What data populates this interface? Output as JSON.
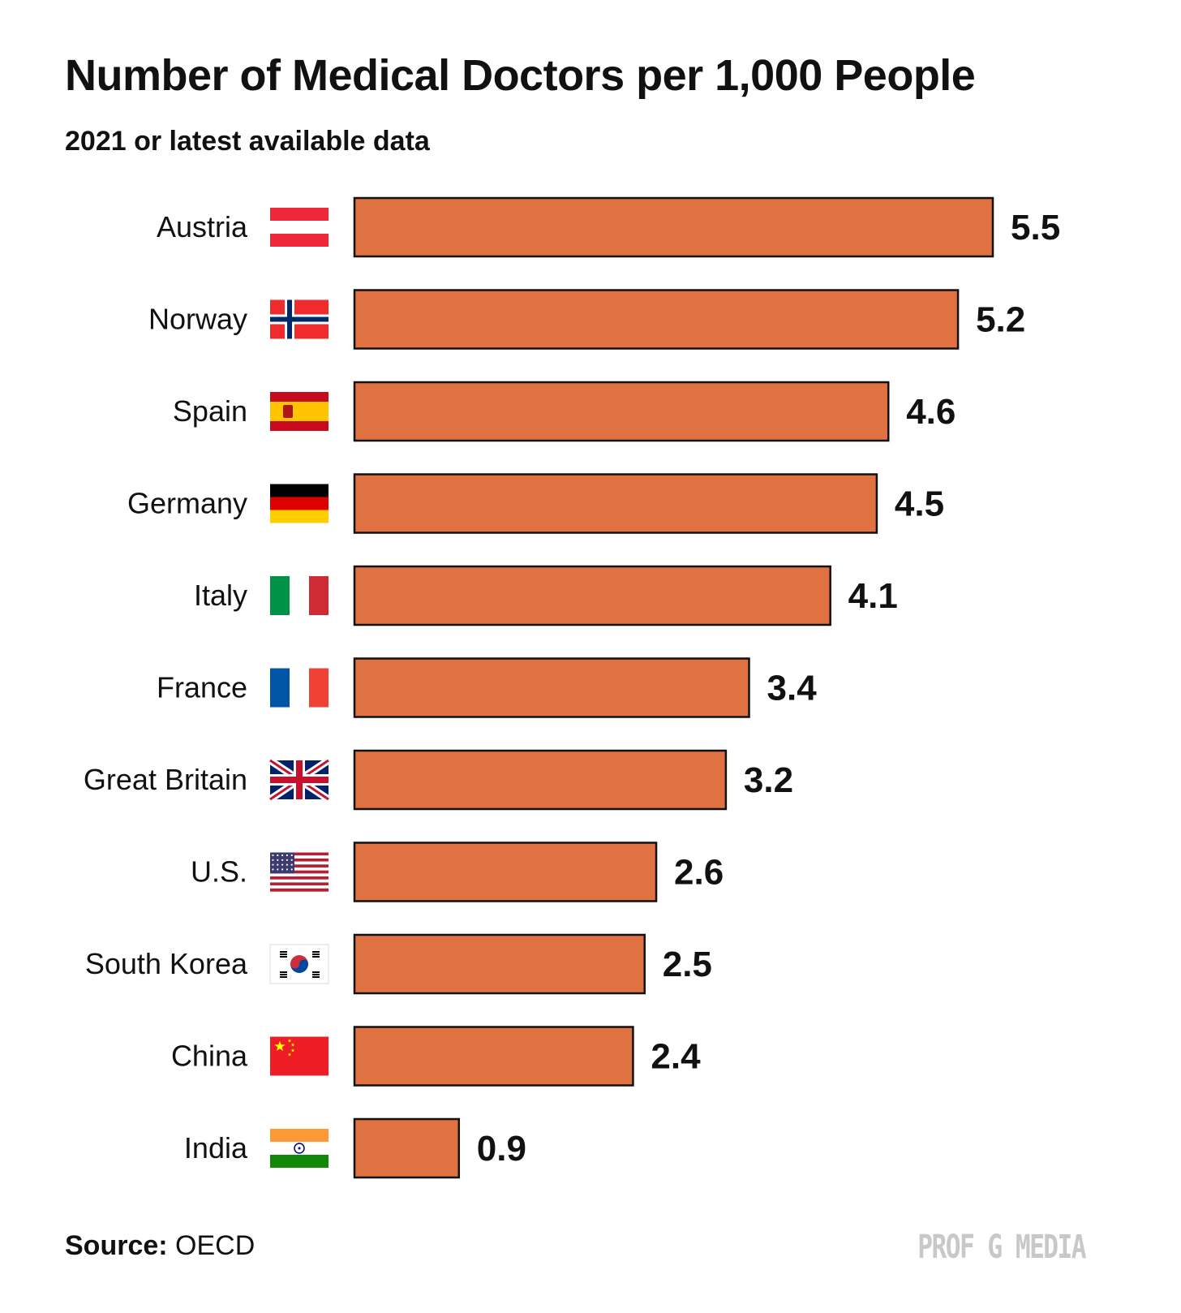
{
  "chart_data": {
    "type": "bar",
    "orientation": "horizontal",
    "title": "Number of Medical Doctors per 1,000 People",
    "subtitle": "2021 or latest available data",
    "categories": [
      "Austria",
      "Norway",
      "Spain",
      "Germany",
      "Italy",
      "France",
      "Great Britain",
      "U.S.",
      "South Korea",
      "China",
      "India"
    ],
    "flags": [
      "austria-flag",
      "norway-flag",
      "spain-flag",
      "germany-flag",
      "italy-flag",
      "france-flag",
      "great-britain-flag",
      "us-flag",
      "south-korea-flag",
      "china-flag",
      "india-flag"
    ],
    "values": [
      5.5,
      5.2,
      4.6,
      4.5,
      4.1,
      3.4,
      3.2,
      2.6,
      2.5,
      2.4,
      0.9
    ],
    "value_labels": [
      "5.5",
      "5.2",
      "4.6",
      "4.5",
      "4.1",
      "3.4",
      "3.2",
      "2.6",
      "2.5",
      "2.4",
      "0.9"
    ],
    "xlim": [
      0,
      5.5
    ],
    "grid": false,
    "bar_color": "#e07242",
    "bar_outline": "#111111"
  },
  "footer": {
    "source_label": "Source:",
    "source_value": "OECD",
    "brand": "PROF G MEDIA"
  }
}
